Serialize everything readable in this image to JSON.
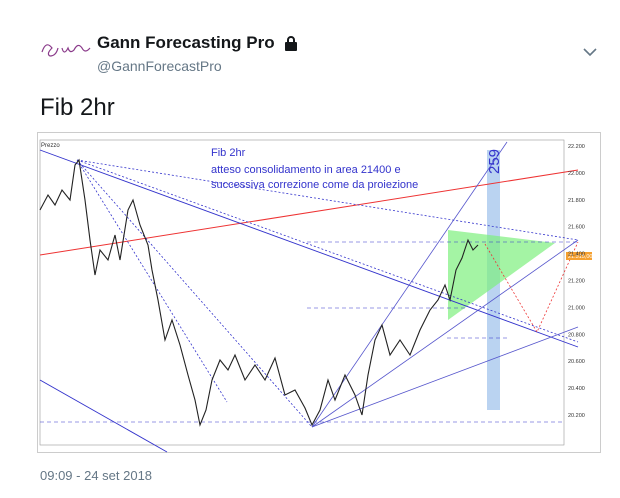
{
  "tweet": {
    "author": "Gann Forecasting Pro",
    "handle": "@GannForecastPro",
    "text": "Fib 2hr",
    "timestamp": "09:09 - 24 set 2018"
  },
  "image": {
    "corner_label": "Prezzo",
    "note_title": "Fib 2hr",
    "note_lines": [
      "atteso consolidamento in area 21400 e",
      "successiva correzione come da proiezione"
    ],
    "vertical_label": "259",
    "price_tag": "21.315,00",
    "axis_labels": [
      "22.200",
      "22.000",
      "21.800",
      "21.600",
      "21.400",
      "21.200",
      "21.000",
      "20.800",
      "20.600",
      "20.400",
      "20.200"
    ]
  }
}
